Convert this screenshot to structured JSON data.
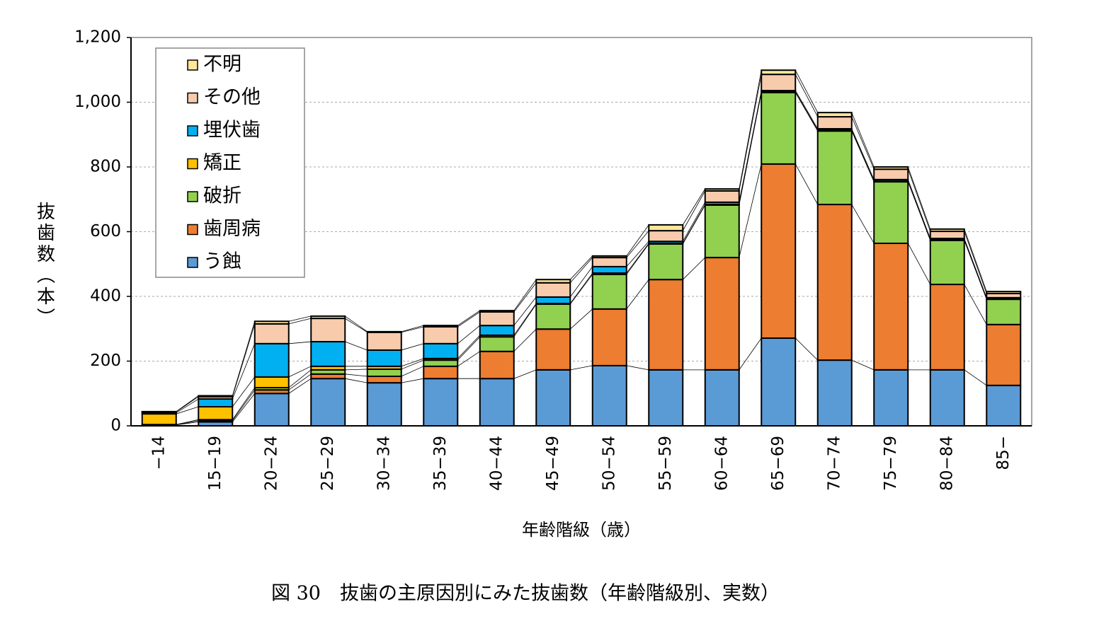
{
  "chart_data": {
    "type": "stacked-bar",
    "title": "図 30　抜歯の主原因別にみた抜歯数（年齢階級別、実数）",
    "x_label": "年齢階級（歳）",
    "y_label": "抜歯数（本）",
    "categories": [
      "−14",
      "15−19",
      "20−24",
      "25−29",
      "30−34",
      "35−39",
      "40−44",
      "45−49",
      "50−54",
      "55−59",
      "60−64",
      "65−69",
      "70−74",
      "75−79",
      "80−84",
      "85−"
    ],
    "series": [
      {
        "name": "う蝕",
        "color": "#5b9bd5",
        "values": [
          3,
          12,
          100,
          146,
          133,
          146,
          146,
          173,
          186,
          173,
          173,
          271,
          203,
          173,
          173,
          125
        ]
      },
      {
        "name": "歯周病",
        "color": "#ed7d31",
        "values": [
          0,
          4,
          11,
          14,
          20,
          38,
          84,
          126,
          175,
          279,
          347,
          538,
          481,
          391,
          264,
          188
        ]
      },
      {
        "name": "破折",
        "color": "#92d050",
        "values": [
          1,
          3,
          7,
          13,
          22,
          19,
          45,
          77,
          107,
          110,
          162,
          221,
          227,
          190,
          136,
          78
        ]
      },
      {
        "name": "矯正",
        "color": "#ffc000",
        "values": [
          33,
          40,
          33,
          11,
          9,
          5,
          5,
          2,
          4,
          2,
          2,
          2,
          3,
          2,
          2,
          2
        ]
      },
      {
        "name": "埋伏歯",
        "color": "#00b0f0",
        "values": [
          3,
          24,
          103,
          76,
          50,
          46,
          30,
          20,
          20,
          6,
          7,
          4,
          4,
          5,
          4,
          3
        ]
      },
      {
        "name": "その他",
        "color": "#f8cbad",
        "values": [
          3,
          7,
          61,
          72,
          55,
          52,
          42,
          44,
          28,
          33,
          35,
          50,
          37,
          32,
          22,
          13
        ]
      },
      {
        "name": "不明",
        "color": "#ffe699",
        "values": [
          1,
          3,
          8,
          7,
          2,
          4,
          4,
          10,
          5,
          18,
          6,
          13,
          13,
          7,
          7,
          6
        ]
      }
    ],
    "ylim": [
      0,
      1200
    ],
    "yticks": [
      0,
      200,
      400,
      600,
      800,
      {
        "value": 1000,
        "label": "1,000"
      },
      {
        "value": 1200,
        "label": "1,200"
      }
    ],
    "grid": true,
    "legend": "top-left"
  }
}
